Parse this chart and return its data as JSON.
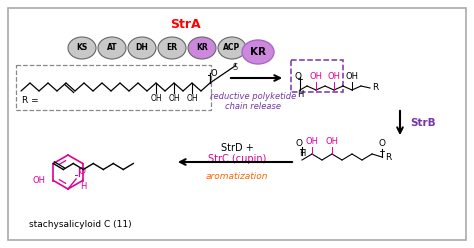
{
  "title": "StrA",
  "title_color": "#ff0000",
  "bg_color": "#ffffff",
  "border_color": "#aaaaaa",
  "domain_labels": [
    "KS",
    "AT",
    "DH",
    "ER",
    "KR",
    "ACP"
  ],
  "domain_colors": [
    "#c8c8c8",
    "#c8c8c8",
    "#c8c8c8",
    "#c8c8c8",
    "#cc88dd",
    "#c8c8c8"
  ],
  "kr_standalone_color": "#cc88dd",
  "kr_standalone_border": "#aa66cc",
  "purple_color": "#7733aa",
  "magenta_color": "#dd0099",
  "red_color": "#ff0000",
  "orange_color": "#ff6600",
  "text_reductive": "reductive polyketide\nchain release",
  "text_strb": "StrB",
  "text_strd": "StrD +",
  "text_strc": "StrC (cupin)",
  "text_aromatization": "aromatization",
  "text_product": "stachysalicyloid C (11)",
  "text_r_equals": "R ="
}
